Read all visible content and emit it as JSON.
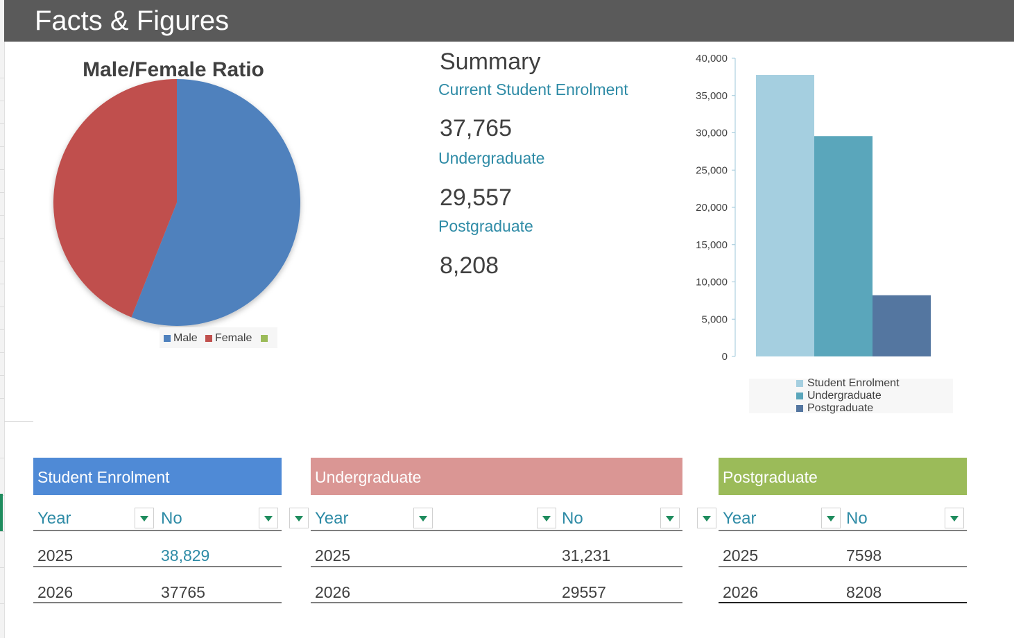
{
  "header": {
    "title": "Facts & Figures"
  },
  "pie": {
    "title": "Male/Female Ratio",
    "legend": [
      "Male",
      "Female",
      ""
    ],
    "colors": [
      "#4f81bd",
      "#c0504d",
      "#9bbb59"
    ],
    "chart_data": {
      "type": "pie",
      "title": "Male/Female Ratio",
      "categories": [
        "Male",
        "Female",
        ""
      ],
      "values": [
        56,
        44,
        0
      ]
    }
  },
  "summary": {
    "title": "Summary",
    "items": [
      {
        "label": "Current Student Enrolment",
        "value": "37,765"
      },
      {
        "label": "Undergraduate",
        "value": "29,557"
      },
      {
        "label": "Postgraduate",
        "value": "8,208"
      }
    ]
  },
  "bar": {
    "colors": [
      "#a5cfe0",
      "#5aa6bb",
      "#5476a0"
    ],
    "chart_data": {
      "type": "bar",
      "categories": [
        "Student Enrolment",
        "Undergraduate",
        "Postgraduate"
      ],
      "values": [
        37765,
        29557,
        8208
      ],
      "ylim": [
        0,
        40000
      ],
      "yticks": [
        "40,000",
        "35,000",
        "30,000",
        "25,000",
        "20,000",
        "15,000",
        "10,000",
        "5,000",
        "0"
      ],
      "legend": [
        "Student Enrolment",
        "Undergraduate",
        "Postgraduate"
      ],
      "legend_position": "bottom"
    }
  },
  "tables": [
    {
      "title": "Student Enrolment",
      "color": "#4f8ad6",
      "columns": [
        "Year",
        "No"
      ],
      "rows": [
        [
          "2025",
          "38,829"
        ],
        [
          "2026",
          "37765"
        ]
      ]
    },
    {
      "title": "Undergraduate",
      "color": "#da9694",
      "columns": [
        "Year",
        "",
        "No"
      ],
      "rows": [
        [
          "2025",
          "31,231"
        ],
        [
          "2026",
          "29557"
        ]
      ]
    },
    {
      "title": "Postgraduate",
      "color": "#9bbb59",
      "columns": [
        "Year",
        "No"
      ],
      "rows": [
        [
          "2025",
          "7598"
        ],
        [
          "2026",
          "8208"
        ]
      ]
    }
  ]
}
